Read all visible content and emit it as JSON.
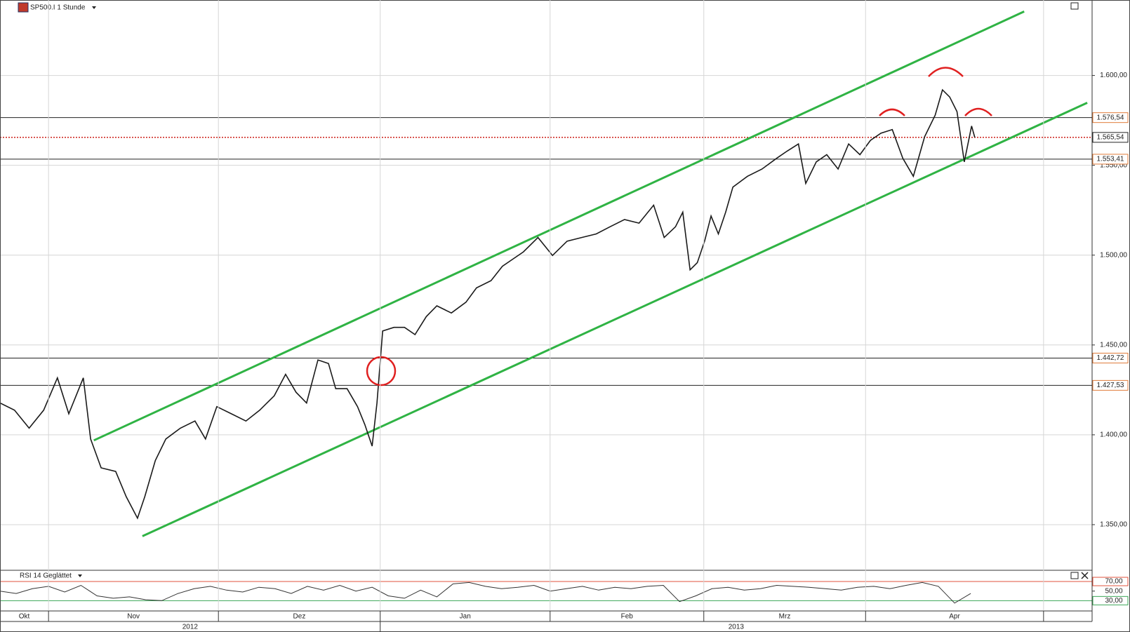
{
  "chart_data": [
    {
      "type": "line",
      "title": "SP500.I 1 Stunde",
      "color": "#1a1a1a",
      "x": [
        15.0,
        16.8,
        18.6,
        20.4,
        22.1,
        23.5,
        25.3,
        26.2,
        27.5,
        29.3,
        30.6,
        32.0,
        32.9,
        34.2,
        35.5,
        37.3,
        39.1,
        40.4,
        41.8,
        43.6,
        45.4,
        47.1,
        48.9,
        50.3,
        51.6,
        52.9,
        54.3,
        55.6,
        56.5,
        57.9,
        59.2,
        60.1,
        61.0,
        61.6,
        62.3,
        63.7,
        65.0,
        66.3,
        67.7,
        69.0,
        70.8,
        72.6,
        73.9,
        75.7,
        77.1,
        78.4,
        79.7,
        81.5,
        83.3,
        85.1,
        86.9,
        88.7,
        90.4,
        92.2,
        94.0,
        95.8,
        97.1,
        98.5,
        99.4,
        100.3,
        101.2,
        102.1,
        102.9,
        103.8,
        104.7,
        105.6,
        107.4,
        109.2,
        111.0,
        112.3,
        113.7,
        114.6,
        115.9,
        117.2,
        118.6,
        119.9,
        121.3,
        122.6,
        123.9,
        125.3,
        126.6,
        127.9,
        129.3,
        130.6,
        131.5,
        132.4,
        133.3,
        134.2,
        135.1,
        135.5
      ],
      "values": [
        1417.7,
        1413.7,
        1403.7,
        1413.7,
        1431.7,
        1411.7,
        1431.7,
        1397.7,
        1381.6,
        1379.6,
        1365.6,
        1353.6,
        1365.6,
        1385.7,
        1397.7,
        1403.7,
        1407.7,
        1397.7,
        1415.7,
        1411.7,
        1407.7,
        1413.7,
        1421.7,
        1433.7,
        1423.7,
        1417.7,
        1441.7,
        1439.7,
        1425.7,
        1425.7,
        1415.7,
        1405.7,
        1393.7,
        1417.7,
        1457.8,
        1459.8,
        1459.8,
        1455.8,
        1465.8,
        1471.8,
        1467.8,
        1473.8,
        1481.8,
        1485.8,
        1493.8,
        1497.8,
        1501.8,
        1509.8,
        1499.8,
        1507.8,
        1509.8,
        1511.8,
        1515.8,
        1519.8,
        1517.8,
        1527.8,
        1509.8,
        1515.8,
        1523.9,
        1491.8,
        1495.8,
        1507.8,
        1521.8,
        1511.8,
        1523.9,
        1537.9,
        1543.9,
        1547.9,
        1553.9,
        1557.9,
        1561.9,
        1539.9,
        1551.9,
        1555.9,
        1547.9,
        1561.9,
        1555.9,
        1563.9,
        1567.9,
        1569.9,
        1553.9,
        1543.9,
        1565.9,
        1577.9,
        1592.0,
        1588.0,
        1579.9,
        1551.9,
        1571.9,
        1565.5
      ],
      "xlim": [
        15,
        150
      ],
      "xticks": [
        {
          "value": 0,
          "label": "Okt"
        },
        {
          "value": 21,
          "label": "Nov"
        },
        {
          "value": 42,
          "label": "Dez"
        },
        {
          "value": 62,
          "label": "Jan"
        },
        {
          "value": 83,
          "label": "Feb"
        },
        {
          "value": 102,
          "label": "Mrz"
        },
        {
          "value": 122,
          "label": "Apr"
        },
        {
          "value": 144,
          "label": null
        }
      ],
      "year_ticks": [
        {
          "value": 0,
          "label": "2012"
        },
        {
          "value": 62,
          "label": "2013"
        }
      ],
      "ylim": [
        1325,
        1642
      ],
      "yticks": [
        {
          "value": 1350,
          "label": "1.350,00"
        },
        {
          "value": 1400,
          "label": "1.400,00"
        },
        {
          "value": 1450,
          "label": "1.450,00"
        },
        {
          "value": 1500,
          "label": "1.500,00"
        },
        {
          "value": 1550,
          "label": "1.550,00"
        },
        {
          "value": 1600,
          "label": "1.600,00"
        }
      ],
      "grid": true,
      "levels": [
        {
          "value": 1576.54,
          "label": "1.576,54",
          "color": "#c0392b",
          "style": "solid"
        },
        {
          "value": 1565.54,
          "label": "1.565,54",
          "color": "#111111",
          "style": "dotted"
        },
        {
          "value": 1553.41,
          "label": "1.553,41",
          "color": "#c0392b",
          "style": "solid"
        },
        {
          "value": 1442.72,
          "label": "1.442,72",
          "color": "#c0392b",
          "style": "solid"
        },
        {
          "value": 1427.53,
          "label": "1.427,53",
          "color": "#c0392b",
          "style": "solid"
        }
      ],
      "trendlines": [
        {
          "x": [
            26.6,
            141.6
          ],
          "values": [
            1396.9,
            1635.6
          ],
          "color": "#2fb344"
        },
        {
          "x": [
            32.6,
            149.4
          ],
          "values": [
            1343.6,
            1584.8
          ],
          "color": "#2fb344"
        }
      ]
    },
    {
      "type": "line",
      "title": "RSI 14 Geglättet",
      "color": "#333333",
      "x": [
        15,
        17,
        19,
        21,
        23,
        25,
        27,
        29,
        31,
        33,
        35,
        37,
        39,
        41,
        43,
        45,
        47,
        49,
        51,
        53,
        55,
        57,
        59,
        61,
        63,
        65,
        67,
        69,
        71,
        73,
        75,
        77,
        79,
        81,
        83,
        85,
        87,
        89,
        91,
        93,
        95,
        97,
        99,
        101,
        103,
        105,
        107,
        109,
        111,
        113,
        115,
        117,
        119,
        121,
        123,
        125,
        127,
        129,
        131,
        133,
        135
      ],
      "values": [
        50,
        45,
        55,
        60,
        48,
        62,
        40,
        35,
        38,
        32,
        30,
        45,
        55,
        60,
        52,
        48,
        58,
        55,
        45,
        60,
        52,
        62,
        50,
        58,
        40,
        35,
        52,
        38,
        65,
        68,
        60,
        55,
        58,
        62,
        50,
        55,
        60,
        52,
        58,
        55,
        60,
        62,
        28,
        40,
        55,
        58,
        52,
        55,
        62,
        60,
        58,
        55,
        52,
        58,
        60,
        55,
        62,
        68,
        60,
        25,
        45
      ],
      "xlim": [
        15,
        150
      ],
      "ylim": [
        10,
        92
      ],
      "yticks": [
        {
          "value": 70,
          "label": "70,00"
        },
        {
          "value": 50,
          "label": "50,00"
        },
        {
          "value": 30,
          "label": "30,00"
        }
      ],
      "line_colors": [
        "#e0533d",
        null,
        "#3aa655"
      ]
    }
  ]
}
